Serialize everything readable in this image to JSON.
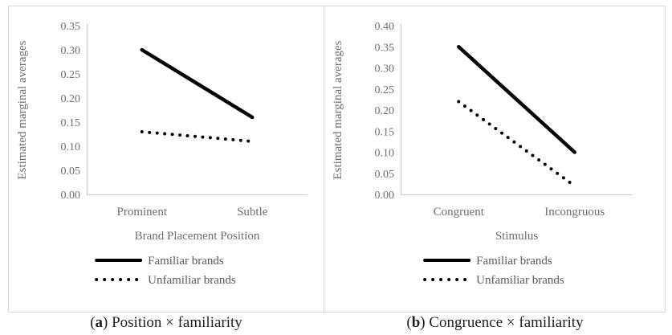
{
  "figure": {
    "border_color": "#d9d9d9",
    "axis_line_color": "#c9c9c9",
    "axis_text_color": "#6e6e6e",
    "line_color": "#000000"
  },
  "chart_data": [
    {
      "type": "line",
      "panel": "a",
      "caption": {
        "open": "(",
        "label": "a",
        "rest": ") Position × familiarity"
      },
      "ylabel": "Estimated marginal averages",
      "xlabel": "Brand Placement Position",
      "categories": [
        "Prominent",
        "Subtle"
      ],
      "series": [
        {
          "name": "Familiar brands",
          "style": "solid",
          "values": [
            0.3,
            0.16
          ]
        },
        {
          "name": "Unfamiliar brands",
          "style": "dotted",
          "values": [
            0.13,
            0.11
          ]
        }
      ],
      "ylim": [
        0.0,
        0.35
      ],
      "yticks": [
        "0.00",
        "0.05",
        "0.10",
        "0.15",
        "0.20",
        "0.25",
        "0.30",
        "0.35"
      ],
      "grid": "off",
      "legend_position": "bottom"
    },
    {
      "type": "line",
      "panel": "b",
      "caption": {
        "open": "(",
        "label": "b",
        "rest": ") Congruence × familiarity"
      },
      "ylabel": "Estimated marginal averages",
      "xlabel": "Stimulus",
      "categories": [
        "Congruent",
        "Incongruous"
      ],
      "series": [
        {
          "name": "Familiar brands",
          "style": "solid",
          "values": [
            0.35,
            0.1
          ]
        },
        {
          "name": "Unfamiliar brands",
          "style": "dotted",
          "values": [
            0.22,
            0.02
          ]
        }
      ],
      "ylim": [
        0.0,
        0.4
      ],
      "yticks": [
        "0.00",
        "0.05",
        "0.10",
        "0.15",
        "0.20",
        "0.25",
        "0.30",
        "0.35",
        "0.40"
      ],
      "grid": "off",
      "legend_position": "bottom"
    }
  ]
}
